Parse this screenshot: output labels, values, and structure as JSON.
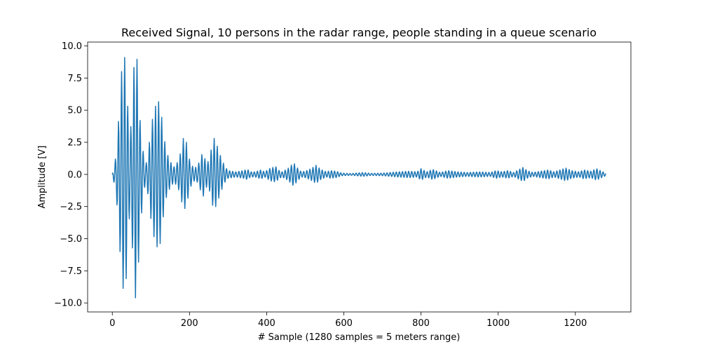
{
  "chart_data": {
    "type": "line",
    "title": "Received Signal, 10 persons in the radar range, people standing in a queue scenario",
    "xlabel": "# Sample (1280 samples = 5 meters range)",
    "ylabel": "Amplitude [V]",
    "xlim": [
      -64,
      1344
    ],
    "ylim": [
      -10.7,
      10.3
    ],
    "xticks": [
      0,
      200,
      400,
      600,
      800,
      1000,
      1200
    ],
    "xtick_labels": [
      "0",
      "200",
      "400",
      "600",
      "800",
      "1000",
      "1200"
    ],
    "yticks": [
      -10.0,
      -7.5,
      -5.0,
      -2.5,
      0.0,
      2.5,
      5.0,
      7.5,
      10.0
    ],
    "ytick_labels": [
      "−10.0",
      "−7.5",
      "−5.0",
      "−2.5",
      "0.0",
      "2.5",
      "5.0",
      "7.5",
      "10.0"
    ],
    "grid": false,
    "legend": "none",
    "series_color": "#1f77b4",
    "signal": {
      "num_samples": 1280,
      "x_start": 0,
      "x_end": 1279,
      "carrier_period_samples": 8,
      "envelope": [
        [
          0,
          0.0
        ],
        [
          10,
          1.5
        ],
        [
          18,
          5.0
        ],
        [
          24,
          8.0
        ],
        [
          30,
          9.3
        ],
        [
          35,
          8.8
        ],
        [
          40,
          5.3
        ],
        [
          45,
          3.0
        ],
        [
          50,
          4.2
        ],
        [
          55,
          8.0
        ],
        [
          60,
          9.6
        ],
        [
          65,
          8.8
        ],
        [
          72,
          4.2
        ],
        [
          80,
          1.8
        ],
        [
          85,
          0.8
        ],
        [
          90,
          1.0
        ],
        [
          98,
          3.0
        ],
        [
          105,
          4.5
        ],
        [
          112,
          5.3
        ],
        [
          118,
          5.8
        ],
        [
          125,
          5.3
        ],
        [
          132,
          3.3
        ],
        [
          140,
          1.8
        ],
        [
          150,
          1.0
        ],
        [
          160,
          0.6
        ],
        [
          170,
          1.0
        ],
        [
          178,
          1.8
        ],
        [
          184,
          2.8
        ],
        [
          192,
          2.5
        ],
        [
          200,
          1.2
        ],
        [
          210,
          0.5
        ],
        [
          220,
          0.6
        ],
        [
          228,
          1.2
        ],
        [
          235,
          1.8
        ],
        [
          242,
          1.0
        ],
        [
          250,
          1.0
        ],
        [
          258,
          2.2
        ],
        [
          264,
          2.8
        ],
        [
          272,
          2.2
        ],
        [
          282,
          1.3
        ],
        [
          292,
          0.6
        ],
        [
          300,
          0.3
        ],
        [
          320,
          0.2
        ],
        [
          340,
          0.3
        ],
        [
          350,
          0.4
        ],
        [
          358,
          0.2
        ],
        [
          370,
          0.2
        ],
        [
          385,
          0.35
        ],
        [
          395,
          0.2
        ],
        [
          410,
          0.5
        ],
        [
          425,
          0.6
        ],
        [
          430,
          0.35
        ],
        [
          440,
          0.2
        ],
        [
          455,
          0.45
        ],
        [
          470,
          0.9
        ],
        [
          480,
          0.5
        ],
        [
          490,
          0.2
        ],
        [
          500,
          0.25
        ],
        [
          515,
          0.45
        ],
        [
          528,
          0.7
        ],
        [
          540,
          0.4
        ],
        [
          555,
          0.2
        ],
        [
          565,
          0.3
        ],
        [
          580,
          0.25
        ],
        [
          595,
          0.1
        ],
        [
          620,
          0.07
        ],
        [
          650,
          0.15
        ],
        [
          670,
          0.08
        ],
        [
          700,
          0.1
        ],
        [
          740,
          0.2
        ],
        [
          770,
          0.25
        ],
        [
          790,
          0.2
        ],
        [
          800,
          0.45
        ],
        [
          815,
          0.2
        ],
        [
          830,
          0.4
        ],
        [
          850,
          0.15
        ],
        [
          870,
          0.3
        ],
        [
          895,
          0.2
        ],
        [
          920,
          0.15
        ],
        [
          950,
          0.2
        ],
        [
          980,
          0.15
        ],
        [
          995,
          0.3
        ],
        [
          1010,
          0.2
        ],
        [
          1025,
          0.3
        ],
        [
          1040,
          0.15
        ],
        [
          1055,
          0.4
        ],
        [
          1065,
          0.55
        ],
        [
          1075,
          0.3
        ],
        [
          1090,
          0.15
        ],
        [
          1110,
          0.25
        ],
        [
          1130,
          0.35
        ],
        [
          1145,
          0.2
        ],
        [
          1160,
          0.35
        ],
        [
          1175,
          0.5
        ],
        [
          1190,
          0.3
        ],
        [
          1210,
          0.2
        ],
        [
          1222,
          0.35
        ],
        [
          1240,
          0.25
        ],
        [
          1255,
          0.45
        ],
        [
          1268,
          0.25
        ],
        [
          1279,
          0.1
        ]
      ]
    }
  }
}
